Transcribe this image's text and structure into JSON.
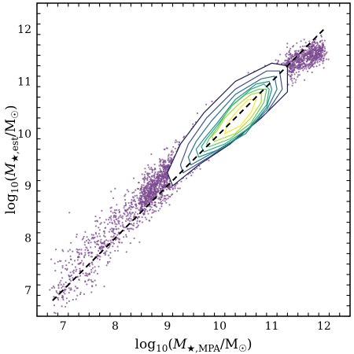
{
  "chart_data": {
    "type": "scatter",
    "title": "",
    "xlabel": "log10(M★,MPA/M☉)",
    "ylabel": "log10(M★,est/M☉)",
    "xlabel_parts": {
      "func": "log",
      "sub": "10",
      "open": "(",
      "sym": "M",
      "subsym": "★,MPA",
      "slash": "/M",
      "sun": "☉",
      "close": ")"
    },
    "ylabel_parts": {
      "func": "log",
      "sub": "10",
      "open": "(",
      "sym": "M",
      "subsym": "★,est",
      "slash": "/M",
      "sun": "☉",
      "close": ")"
    },
    "xlim": [
      6.5,
      12.5
    ],
    "ylim": [
      6.5,
      12.5
    ],
    "xticks": [
      7,
      8,
      9,
      10,
      11,
      12
    ],
    "yticks": [
      7,
      8,
      9,
      10,
      11,
      12
    ],
    "xtick_labels": [
      "7",
      "8",
      "9",
      "10",
      "11",
      "12"
    ],
    "ytick_labels": [
      "7",
      "8",
      "9",
      "10",
      "11",
      "12"
    ],
    "minor_tick_step": 0.2,
    "grid": false,
    "one_to_one_line": {
      "x": [
        6.8,
        12.0
      ],
      "y": [
        6.8,
        12.0
      ],
      "style": "dashed",
      "color": "#000000"
    },
    "scatter": {
      "color": "#7b4a8f",
      "description_points": "dense diagonal cloud of galaxies along 1:1 relation, broad at low mass",
      "density_ridge": [
        {
          "x": 6.8,
          "y": 7.0,
          "sigma": 0.55
        },
        {
          "x": 7.5,
          "y": 7.6,
          "sigma": 0.5
        },
        {
          "x": 8.0,
          "y": 8.2,
          "sigma": 0.45
        },
        {
          "x": 8.5,
          "y": 8.7,
          "sigma": 0.35
        },
        {
          "x": 9.0,
          "y": 9.2,
          "sigma": 0.3
        },
        {
          "x": 9.5,
          "y": 9.7,
          "sigma": 0.3
        },
        {
          "x": 10.0,
          "y": 10.2,
          "sigma": 0.3
        },
        {
          "x": 10.5,
          "y": 10.6,
          "sigma": 0.28
        },
        {
          "x": 11.0,
          "y": 11.0,
          "sigma": 0.25
        },
        {
          "x": 11.5,
          "y": 11.4,
          "sigma": 0.22
        },
        {
          "x": 12.0,
          "y": 11.6,
          "sigma": 0.2
        }
      ]
    },
    "contours": [
      {
        "level": 1,
        "color": "#1f1f4f",
        "points": [
          [
            9.1,
            9.0
          ],
          [
            9.6,
            9.4
          ],
          [
            10.2,
            9.8
          ],
          [
            10.8,
            10.3
          ],
          [
            11.3,
            10.8
          ],
          [
            11.3,
            11.3
          ],
          [
            11.0,
            11.35
          ],
          [
            10.3,
            11.0
          ],
          [
            9.7,
            10.4
          ],
          [
            9.25,
            9.8
          ],
          [
            9.0,
            9.25
          ]
        ]
      },
      {
        "level": 2,
        "color": "#3b528b",
        "points": [
          [
            9.3,
            9.25
          ],
          [
            9.8,
            9.55
          ],
          [
            10.3,
            9.9
          ],
          [
            10.9,
            10.4
          ],
          [
            11.2,
            10.85
          ],
          [
            11.15,
            11.2
          ],
          [
            10.9,
            11.2
          ],
          [
            10.3,
            10.85
          ],
          [
            9.75,
            10.3
          ],
          [
            9.4,
            9.8
          ],
          [
            9.25,
            9.4
          ]
        ]
      },
      {
        "level": 3,
        "color": "#2c728e",
        "points": [
          [
            9.45,
            9.4
          ],
          [
            9.9,
            9.65
          ],
          [
            10.4,
            9.95
          ],
          [
            10.9,
            10.45
          ],
          [
            11.1,
            10.85
          ],
          [
            11.05,
            11.1
          ],
          [
            10.8,
            11.05
          ],
          [
            10.3,
            10.75
          ],
          [
            9.85,
            10.25
          ],
          [
            9.55,
            9.85
          ],
          [
            9.4,
            9.55
          ]
        ]
      },
      {
        "level": 4,
        "color": "#21918c",
        "points": [
          [
            9.6,
            9.55
          ],
          [
            10.0,
            9.7
          ],
          [
            10.5,
            10.0
          ],
          [
            10.9,
            10.5
          ],
          [
            11.0,
            10.85
          ],
          [
            10.95,
            11.0
          ],
          [
            10.7,
            10.95
          ],
          [
            10.3,
            10.65
          ],
          [
            9.95,
            10.2
          ],
          [
            9.7,
            9.9
          ],
          [
            9.55,
            9.7
          ]
        ]
      },
      {
        "level": 5,
        "color": "#28ae80",
        "points": [
          [
            9.7,
            9.65
          ],
          [
            10.1,
            9.8
          ],
          [
            10.55,
            10.1
          ],
          [
            10.9,
            10.55
          ],
          [
            10.95,
            10.85
          ],
          [
            10.85,
            10.95
          ],
          [
            10.6,
            10.85
          ],
          [
            10.25,
            10.55
          ],
          [
            9.95,
            10.15
          ],
          [
            9.75,
            9.9
          ],
          [
            9.65,
            9.75
          ]
        ]
      },
      {
        "level": 6,
        "color": "#5ec962",
        "points": [
          [
            9.8,
            9.75
          ],
          [
            10.2,
            9.9
          ],
          [
            10.6,
            10.2
          ],
          [
            10.85,
            10.6
          ],
          [
            10.9,
            10.85
          ],
          [
            10.75,
            10.85
          ],
          [
            10.5,
            10.75
          ],
          [
            10.2,
            10.5
          ],
          [
            9.95,
            10.1
          ],
          [
            9.8,
            9.9
          ],
          [
            9.75,
            9.8
          ]
        ]
      },
      {
        "level": 7,
        "color": "#addc30",
        "points": [
          [
            9.9,
            9.85
          ],
          [
            10.3,
            10.0
          ],
          [
            10.6,
            10.3
          ],
          [
            10.8,
            10.6
          ],
          [
            10.8,
            10.8
          ],
          [
            10.6,
            10.75
          ],
          [
            10.35,
            10.55
          ],
          [
            10.1,
            10.3
          ],
          [
            9.95,
            10.05
          ],
          [
            9.85,
            9.95
          ]
        ]
      },
      {
        "level": 8,
        "color": "#fde725",
        "points": [
          [
            10.1,
            10.0
          ],
          [
            10.4,
            10.15
          ],
          [
            10.6,
            10.4
          ],
          [
            10.7,
            10.65
          ],
          [
            10.55,
            10.65
          ],
          [
            10.35,
            10.45
          ],
          [
            10.15,
            10.2
          ]
        ]
      }
    ]
  }
}
